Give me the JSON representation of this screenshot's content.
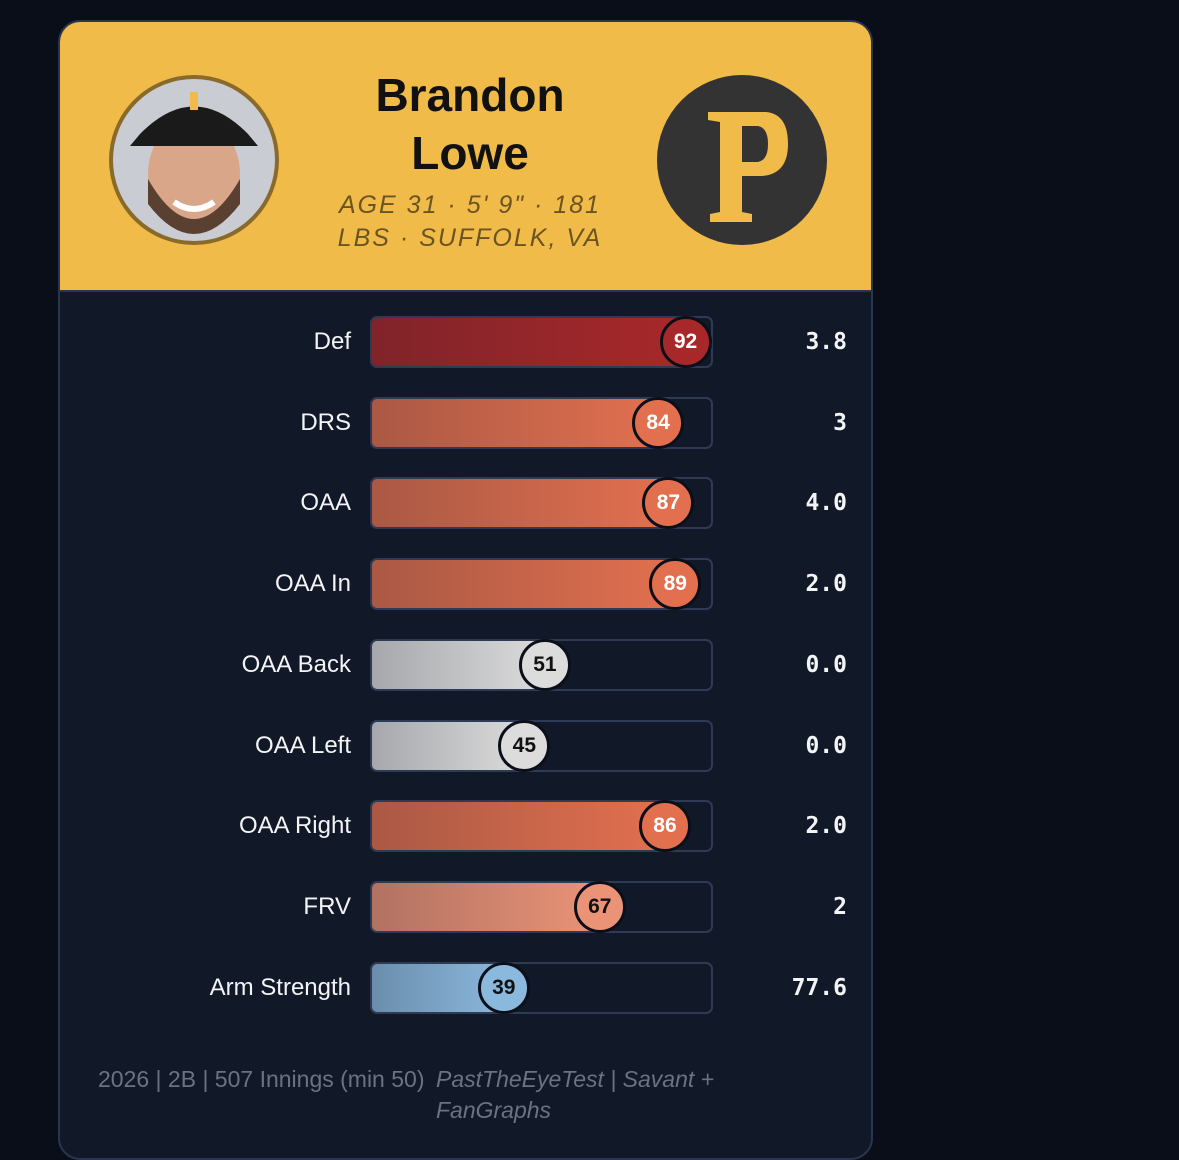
{
  "header": {
    "name": "Brandon Lowe",
    "bio": "AGE 31 · 5' 9\" · 181 LBS · SUFFOLK, VA"
  },
  "rows": [
    {
      "label": "Def",
      "percentile": 92,
      "value": "3.8",
      "color": "#a8282a",
      "badge_text_color": "#ffffff"
    },
    {
      "label": "DRS",
      "percentile": 84,
      "value": "3",
      "color": "#e2704f",
      "badge_text_color": "#ffffff"
    },
    {
      "label": "OAA",
      "percentile": 87,
      "value": "4.0",
      "color": "#e2704f",
      "badge_text_color": "#ffffff"
    },
    {
      "label": "OAA In",
      "percentile": 89,
      "value": "2.0",
      "color": "#e2704f",
      "badge_text_color": "#ffffff"
    },
    {
      "label": "OAA Back",
      "percentile": 51,
      "value": "0.0",
      "color": "#dcdcdc",
      "badge_text_color": "#111111"
    },
    {
      "label": "OAA Left",
      "percentile": 45,
      "value": "0.0",
      "color": "#dcdcdc",
      "badge_text_color": "#111111"
    },
    {
      "label": "OAA Right",
      "percentile": 86,
      "value": "2.0",
      "color": "#e2704f",
      "badge_text_color": "#ffffff"
    },
    {
      "label": "FRV",
      "percentile": 67,
      "value": "2",
      "color": "#eb9377",
      "badge_text_color": "#111111"
    },
    {
      "label": "Arm Strength",
      "percentile": 39,
      "value": "77.6",
      "color": "#8bb8dd",
      "badge_text_color": "#111111"
    }
  ],
  "footer": {
    "left": "2026 | 2B | 507 Innings (min 50)",
    "right": "PastTheEyeTest | Savant + FanGraphs"
  }
}
